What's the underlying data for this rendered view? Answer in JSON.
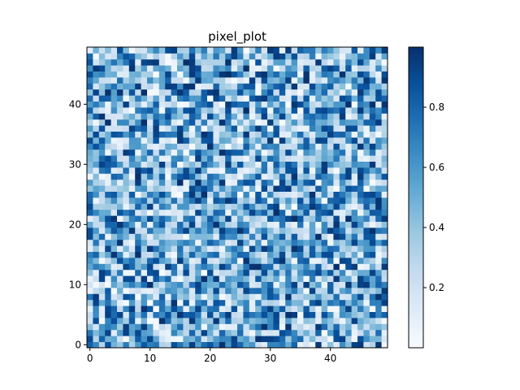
{
  "chart_data": {
    "type": "heatmap",
    "title": "pixel_plot",
    "xlabel": "",
    "ylabel": "",
    "rows": 50,
    "cols": 50,
    "origin": "lower",
    "xlim": [
      -0.5,
      49.5
    ],
    "ylim": [
      -0.5,
      49.5
    ],
    "xticks": [
      0,
      10,
      20,
      30,
      40
    ],
    "yticks": [
      0,
      10,
      20,
      30,
      40
    ],
    "colormap": "Blues",
    "color_low": "#f7fbff",
    "color_high": "#08306b",
    "colorbar": {
      "range": [
        0.0,
        1.0
      ],
      "ticks": [
        0.2,
        0.4,
        0.6,
        0.8
      ],
      "tick_labels": [
        "0.2",
        "0.4",
        "0.6",
        "0.8"
      ]
    },
    "value_distribution": "uniform random in [0, 1]",
    "seed": 20240517
  }
}
